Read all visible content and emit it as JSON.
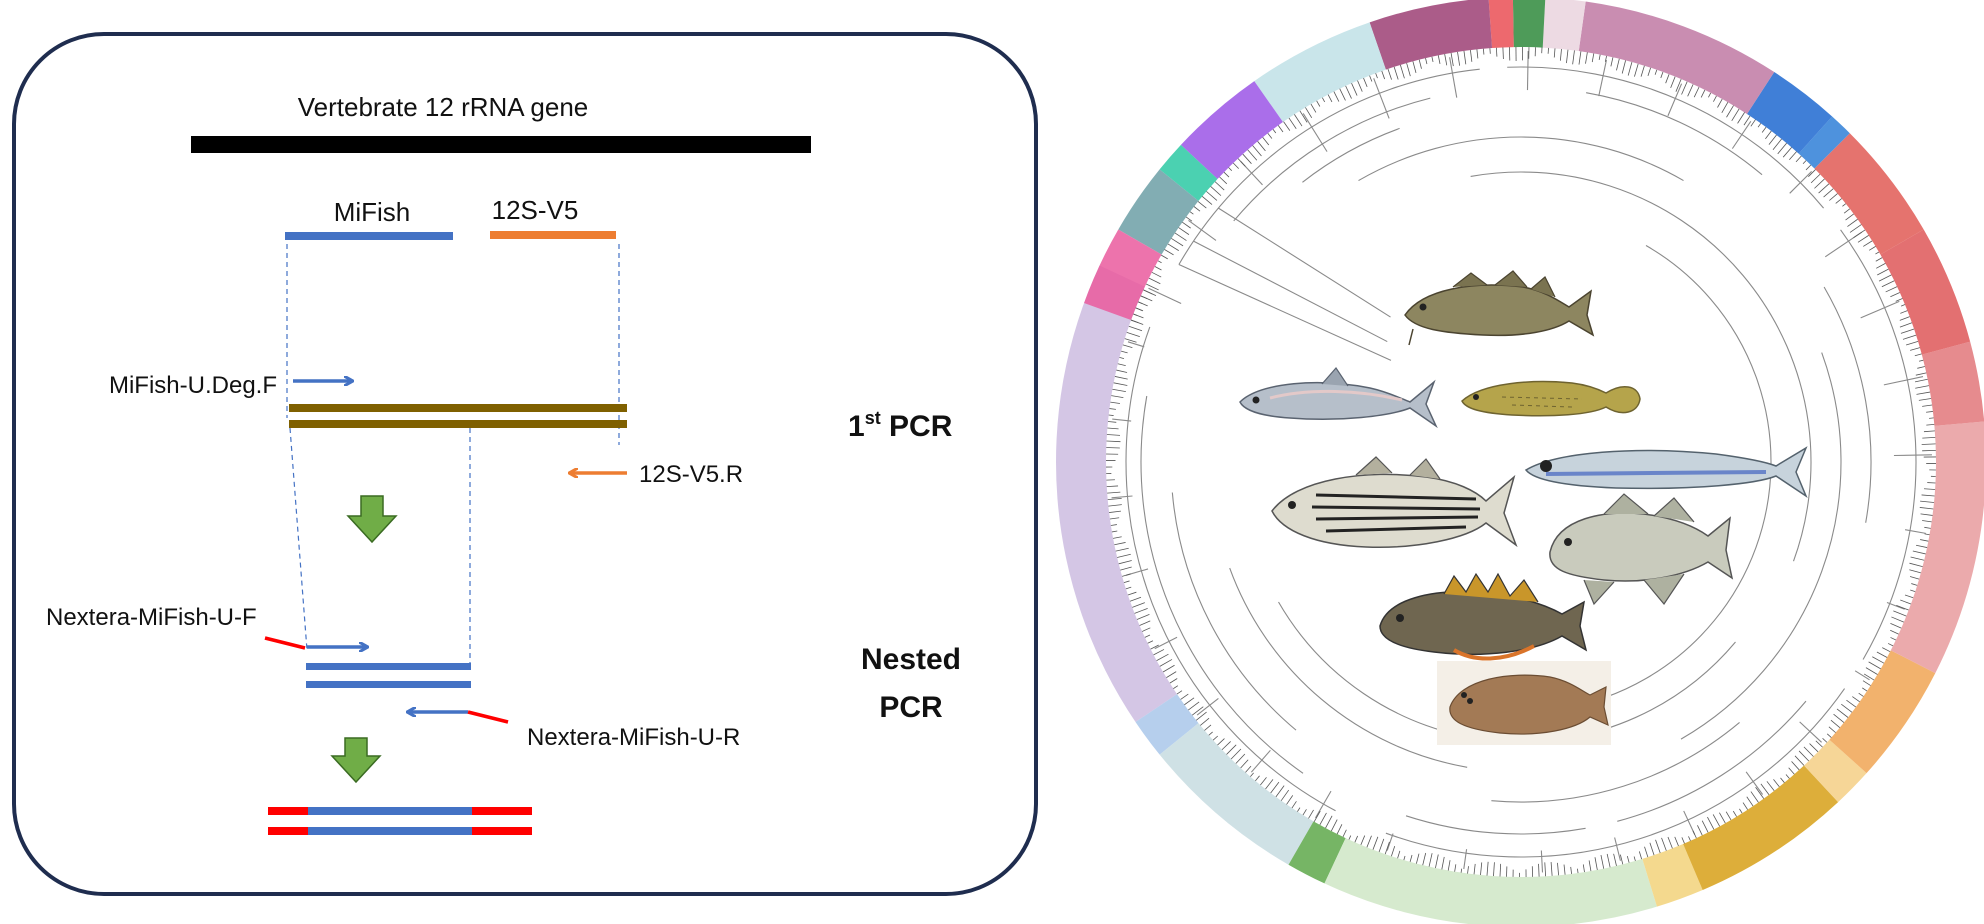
{
  "diagram": {
    "gene_label": "Vertebrate 12 rRNA gene",
    "mifish_label": "MiFish",
    "v5_label": "12S-V5",
    "fwd_primer_label": "MiFish-U.Deg.F",
    "rev_primer_label": "12S-V5.R",
    "pcr1_label": "1",
    "pcr1_sup": "st",
    "pcr1_suffix": " PCR",
    "nextera_f_label": "Nextera-MiFish-U-F",
    "nextera_r_label": "Nextera-MiFish-U-R",
    "nested_label_line1": "Nested",
    "nested_label_line2": "PCR"
  },
  "colors": {
    "frame": "#1f2d4f",
    "gene_bar": "#000000",
    "mifish": "#4472c4",
    "v5": "#ed7d31",
    "amplicon": "#7f6000",
    "step_arrow": "#70ad47",
    "adapter": "#ff0000"
  },
  "tree": {
    "clade_colors": [
      "#cdbce0",
      "#a9c7ea",
      "#c7dce0",
      "#5ea84a",
      "#cfe6c6",
      "#f2d27a",
      "#d7a017",
      "#f5cf85",
      "#f0a553",
      "#e79b9e",
      "#e2777a",
      "#de5758",
      "#e05a55",
      "#2f7fd7",
      "#1f68d0",
      "#c079a3",
      "#ead3de",
      "#2f8a3c",
      "#ea4f55",
      "#9c3f74",
      "#bfe0e6",
      "#9b55e6",
      "#2bc9a3",
      "#6c9fa6",
      "#ea5b9d"
    ],
    "fish_icons": [
      "cod-icon",
      "herring-icon",
      "killifish-icon",
      "striped-bass-icon",
      "smelt-icon",
      "tomcod-icon",
      "sculpin-icon",
      "flounder-icon"
    ]
  }
}
